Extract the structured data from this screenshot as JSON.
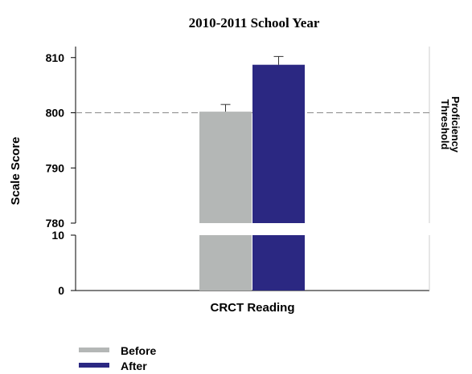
{
  "chart_data": {
    "type": "bar",
    "title": "2010-2011 School Year",
    "categories": [
      "CRCT Reading"
    ],
    "xlabel": "CRCT Reading",
    "ylabel": "Scale Score",
    "ylim": [
      0,
      812
    ],
    "axis_break": {
      "lower_range": [
        0,
        10
      ],
      "upper_range": [
        780,
        812
      ]
    },
    "yticks": [
      0,
      10,
      780,
      790,
      800,
      810
    ],
    "series": [
      {
        "name": "Before",
        "color": "#b4b7b6",
        "values": [
          800.2
        ],
        "error": [
          1.3
        ]
      },
      {
        "name": "After",
        "color": "#2b2882",
        "values": [
          808.7
        ],
        "error": [
          1.5
        ]
      }
    ],
    "reference_line": {
      "value": 800,
      "label": [
        "Proficiency",
        "Threshold"
      ],
      "style": "dashed"
    },
    "legend": {
      "position": "bottom-left",
      "entries": [
        "Before",
        "After"
      ]
    },
    "grid": false
  }
}
